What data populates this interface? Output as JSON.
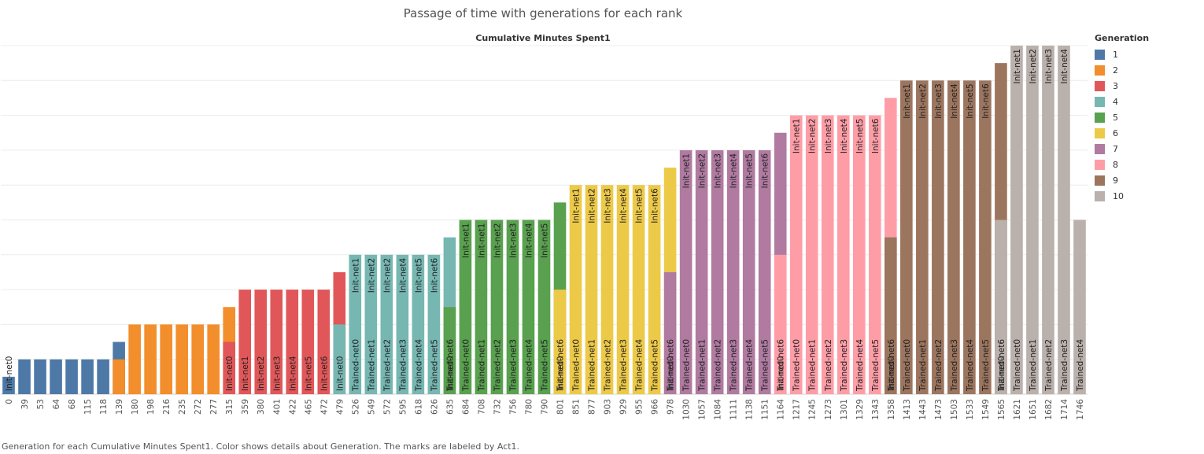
{
  "title": "Passage of time with generations for each rank",
  "caption": "Generation for each Cumulative Minutes Spent1.  Color shows details about Generation.  The marks are labeled by Act1.",
  "legend": {
    "title": "Generation",
    "items": [
      {
        "label": "1",
        "color": "#4e79a7"
      },
      {
        "label": "2",
        "color": "#f28e2b"
      },
      {
        "label": "3",
        "color": "#e15759"
      },
      {
        "label": "4",
        "color": "#76b7b2"
      },
      {
        "label": "5",
        "color": "#59a14f"
      },
      {
        "label": "6",
        "color": "#edc948"
      },
      {
        "label": "7",
        "color": "#b07aa1"
      },
      {
        "label": "8",
        "color": "#ff9da7"
      },
      {
        "label": "9",
        "color": "#9c755f"
      },
      {
        "label": "10",
        "color": "#bab0ac"
      }
    ]
  },
  "chart_data": {
    "type": "bar",
    "title": "Passage of time with generations for each rank",
    "xlabel": "Cumulative Minutes Spent1",
    "ylabel": "",
    "ylim": [
      0,
      10
    ],
    "grid": true,
    "legend_position": "right",
    "categories": [
      "0",
      "39",
      "53",
      "64",
      "68",
      "115",
      "118",
      "139",
      "180",
      "198",
      "216",
      "235",
      "272",
      "277",
      "315",
      "359",
      "380",
      "401",
      "422",
      "465",
      "472",
      "479",
      "526",
      "549",
      "572",
      "595",
      "618",
      "626",
      "635",
      "684",
      "708",
      "732",
      "756",
      "780",
      "790",
      "801",
      "851",
      "877",
      "903",
      "929",
      "955",
      "966",
      "978",
      "1030",
      "1057",
      "1084",
      "1111",
      "1138",
      "1151",
      "1164",
      "1217",
      "1245",
      "1273",
      "1301",
      "1329",
      "1343",
      "1358",
      "1413",
      "1443",
      "1473",
      "1503",
      "1533",
      "1549",
      "1565",
      "1621",
      "1651",
      "1682",
      "1714",
      "1746"
    ],
    "segments": [
      [
        {
          "gen": 1,
          "value": 0.5,
          "label": "Init-net0"
        }
      ],
      [
        {
          "gen": 1,
          "value": 1,
          "label": ""
        }
      ],
      [
        {
          "gen": 1,
          "value": 1,
          "label": ""
        }
      ],
      [
        {
          "gen": 1,
          "value": 1,
          "label": ""
        }
      ],
      [
        {
          "gen": 1,
          "value": 1,
          "label": ""
        }
      ],
      [
        {
          "gen": 1,
          "value": 1,
          "label": ""
        }
      ],
      [
        {
          "gen": 1,
          "value": 1,
          "label": ""
        }
      ],
      [
        {
          "gen": 1,
          "value": 1.5,
          "label": ""
        },
        {
          "gen": 2,
          "value": 1,
          "label": ""
        }
      ],
      [
        {
          "gen": 2,
          "value": 2,
          "label": ""
        }
      ],
      [
        {
          "gen": 2,
          "value": 2,
          "label": ""
        }
      ],
      [
        {
          "gen": 2,
          "value": 2,
          "label": ""
        }
      ],
      [
        {
          "gen": 2,
          "value": 2,
          "label": ""
        }
      ],
      [
        {
          "gen": 2,
          "value": 2,
          "label": ""
        }
      ],
      [
        {
          "gen": 2,
          "value": 2,
          "label": ""
        }
      ],
      [
        {
          "gen": 2,
          "value": 2.5,
          "label": ""
        },
        {
          "gen": 3,
          "value": 1.5,
          "label": "Init-net0"
        }
      ],
      [
        {
          "gen": 3,
          "value": 3,
          "label": "Init-net1"
        }
      ],
      [
        {
          "gen": 3,
          "value": 3,
          "label": "Init-net2"
        }
      ],
      [
        {
          "gen": 3,
          "value": 3,
          "label": "Init-net3"
        }
      ],
      [
        {
          "gen": 3,
          "value": 3,
          "label": "Init-net4"
        }
      ],
      [
        {
          "gen": 3,
          "value": 3,
          "label": "Init-net5"
        }
      ],
      [
        {
          "gen": 3,
          "value": 3,
          "label": "Init-net6"
        }
      ],
      [
        {
          "gen": 3,
          "value": 3.5,
          "label": ""
        },
        {
          "gen": 4,
          "value": 2,
          "label": "Init-net0"
        }
      ],
      [
        {
          "gen": 4,
          "value": 4,
          "label": "Init-net1 | Trained-net0"
        }
      ],
      [
        {
          "gen": 4,
          "value": 4,
          "label": "Init-net2 | Trained-net1"
        }
      ],
      [
        {
          "gen": 4,
          "value": 4,
          "label": "Init-net2 | Trained-net2"
        }
      ],
      [
        {
          "gen": 4,
          "value": 4,
          "label": "Init-net4 | Trained-net3"
        }
      ],
      [
        {
          "gen": 4,
          "value": 4,
          "label": "Init-net5 | Trained-net4"
        }
      ],
      [
        {
          "gen": 4,
          "value": 4,
          "label": "Init-net6 | Trained-net5"
        }
      ],
      [
        {
          "gen": 4,
          "value": 4.5,
          "label": "Trained-net6"
        },
        {
          "gen": 5,
          "value": 2.5,
          "label": "Init-net0"
        }
      ],
      [
        {
          "gen": 5,
          "value": 5,
          "label": "Init-net1 | Trained-net0"
        }
      ],
      [
        {
          "gen": 5,
          "value": 5,
          "label": "Init-net1 | Trained-net1"
        }
      ],
      [
        {
          "gen": 5,
          "value": 5,
          "label": "Init-net2 | Trained-net2"
        }
      ],
      [
        {
          "gen": 5,
          "value": 5,
          "label": "Init-net3 | Trained-net3"
        }
      ],
      [
        {
          "gen": 5,
          "value": 5,
          "label": "Init-net4 | Trained-net4"
        }
      ],
      [
        {
          "gen": 5,
          "value": 5,
          "label": "Init-net5 | Trained-net5"
        }
      ],
      [
        {
          "gen": 5,
          "value": 5.5,
          "label": "Trained-net6"
        },
        {
          "gen": 6,
          "value": 3,
          "label": "Init-net0"
        }
      ],
      [
        {
          "gen": 6,
          "value": 6,
          "label": "Init-net1 | Trained-net0"
        }
      ],
      [
        {
          "gen": 6,
          "value": 6,
          "label": "Init-net2 | Trained-net1"
        }
      ],
      [
        {
          "gen": 6,
          "value": 6,
          "label": "Init-net3 | Trained-net2"
        }
      ],
      [
        {
          "gen": 6,
          "value": 6,
          "label": "Init-net4 | Trained-net3"
        }
      ],
      [
        {
          "gen": 6,
          "value": 6,
          "label": "Init-net5 | Trained-net4"
        }
      ],
      [
        {
          "gen": 6,
          "value": 6,
          "label": "Init-net6 | Trained-net5"
        }
      ],
      [
        {
          "gen": 6,
          "value": 6.5,
          "label": "Trained-net6"
        },
        {
          "gen": 7,
          "value": 3.5,
          "label": "Init-net0"
        }
      ],
      [
        {
          "gen": 7,
          "value": 7,
          "label": "Init-net1 | Trained-net0"
        }
      ],
      [
        {
          "gen": 7,
          "value": 7,
          "label": "Init-net2 | Trained-net1"
        }
      ],
      [
        {
          "gen": 7,
          "value": 7,
          "label": "Init-net3 | Trained-net2"
        }
      ],
      [
        {
          "gen": 7,
          "value": 7,
          "label": "Init-net4 | Trained-net3"
        }
      ],
      [
        {
          "gen": 7,
          "value": 7,
          "label": "Init-net5 | Trained-net4"
        }
      ],
      [
        {
          "gen": 7,
          "value": 7,
          "label": "Init-net6 | Trained-net5"
        }
      ],
      [
        {
          "gen": 7,
          "value": 7.5,
          "label": "Trained-net6"
        },
        {
          "gen": 8,
          "value": 4,
          "label": "Init-net0"
        }
      ],
      [
        {
          "gen": 8,
          "value": 8,
          "label": "Init-net1 | Trained-net0"
        }
      ],
      [
        {
          "gen": 8,
          "value": 8,
          "label": "Init-net2 | Trained-net1"
        }
      ],
      [
        {
          "gen": 8,
          "value": 8,
          "label": "Init-net3 | Trained-net2"
        }
      ],
      [
        {
          "gen": 8,
          "value": 8,
          "label": "Init-net4 | Trained-net3"
        }
      ],
      [
        {
          "gen": 8,
          "value": 8,
          "label": "Init-net5 | Trained-net4"
        }
      ],
      [
        {
          "gen": 8,
          "value": 8,
          "label": "Init-net6 | Trained-net5"
        }
      ],
      [
        {
          "gen": 8,
          "value": 8.5,
          "label": "Trained-net6"
        },
        {
          "gen": 9,
          "value": 4.5,
          "label": "Init-net0"
        }
      ],
      [
        {
          "gen": 9,
          "value": 9,
          "label": "Init-net1 | Trained-net0"
        }
      ],
      [
        {
          "gen": 9,
          "value": 9,
          "label": "Init-net2 | Trained-net1"
        }
      ],
      [
        {
          "gen": 9,
          "value": 9,
          "label": "Init-net3 | Trained-net2"
        }
      ],
      [
        {
          "gen": 9,
          "value": 9,
          "label": "Init-net4 | Trained-net3"
        }
      ],
      [
        {
          "gen": 9,
          "value": 9,
          "label": "Init-net5 | Trained-net4"
        }
      ],
      [
        {
          "gen": 9,
          "value": 9,
          "label": "Init-net6 | Trained-net5"
        }
      ],
      [
        {
          "gen": 9,
          "value": 9.5,
          "label": "Trained-net6"
        },
        {
          "gen": 10,
          "value": 5,
          "label": "Init-net0"
        }
      ],
      [
        {
          "gen": 10,
          "value": 10,
          "label": "Init-net1 | Trained-net0"
        }
      ],
      [
        {
          "gen": 10,
          "value": 10,
          "label": "Init-net2 | Trained-net1"
        }
      ],
      [
        {
          "gen": 10,
          "value": 10,
          "label": "Init-net3 | Trained-net2"
        }
      ],
      [
        {
          "gen": 10,
          "value": 10,
          "label": "Init-net4 | Trained-net3"
        }
      ],
      [
        {
          "gen": 10,
          "value": 5,
          "label": "Trained-net4"
        }
      ]
    ]
  }
}
